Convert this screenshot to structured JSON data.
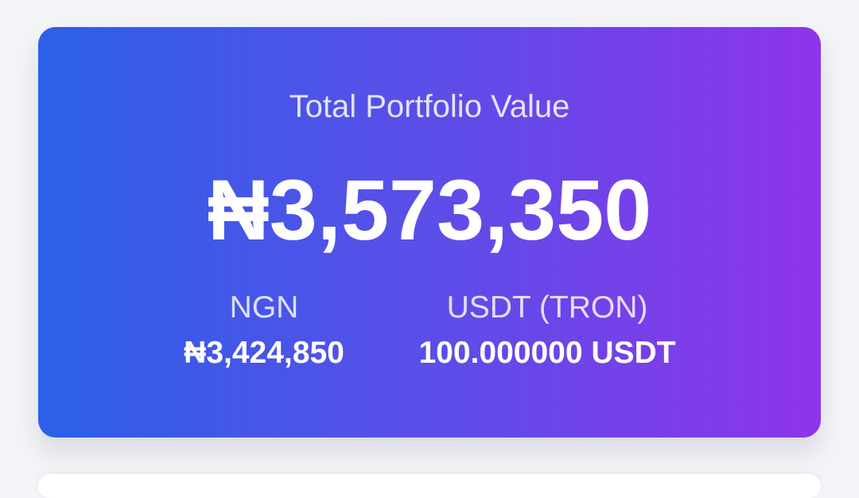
{
  "portfolio": {
    "title": "Total Portfolio Value",
    "total": "₦3,573,350",
    "balances": [
      {
        "label": "NGN",
        "amount": "₦3,424,850"
      },
      {
        "label": "USDT (TRON)",
        "amount": "100.000000 USDT"
      }
    ],
    "gradient_colors": [
      "#2b60e8",
      "#5b4ee8",
      "#8e34ea"
    ]
  }
}
